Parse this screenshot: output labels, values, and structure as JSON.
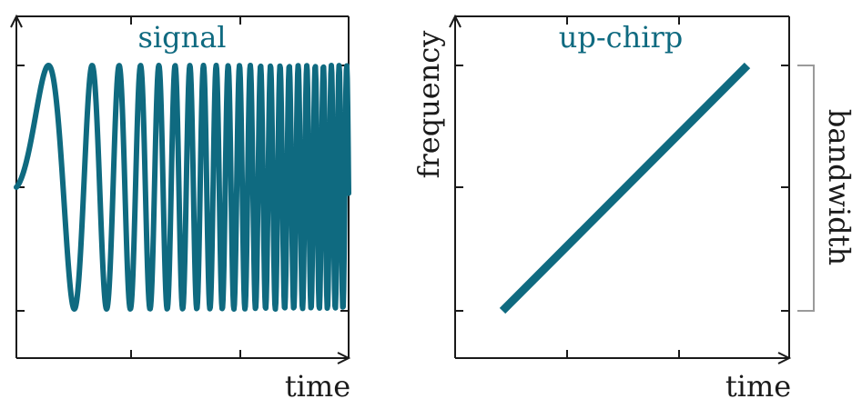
{
  "colors": {
    "curve": "#0f6a80",
    "axes": "#1a1a1a",
    "bracket": "#9a9a9a"
  },
  "chart_data": [
    {
      "type": "line",
      "title": "signal",
      "xlabel": "time",
      "ylabel": "",
      "description_of_series": "chirp waveform with increasing oscillation rate",
      "phase_law": "quadratic"
    },
    {
      "type": "line",
      "title": "up-chirp",
      "xlabel": "time",
      "ylabel": "frequency",
      "annotation": "bandwidth",
      "series": [
        {
          "x": [
            0.1,
            0.9
          ],
          "y": [
            -1,
            1
          ]
        }
      ]
    }
  ]
}
